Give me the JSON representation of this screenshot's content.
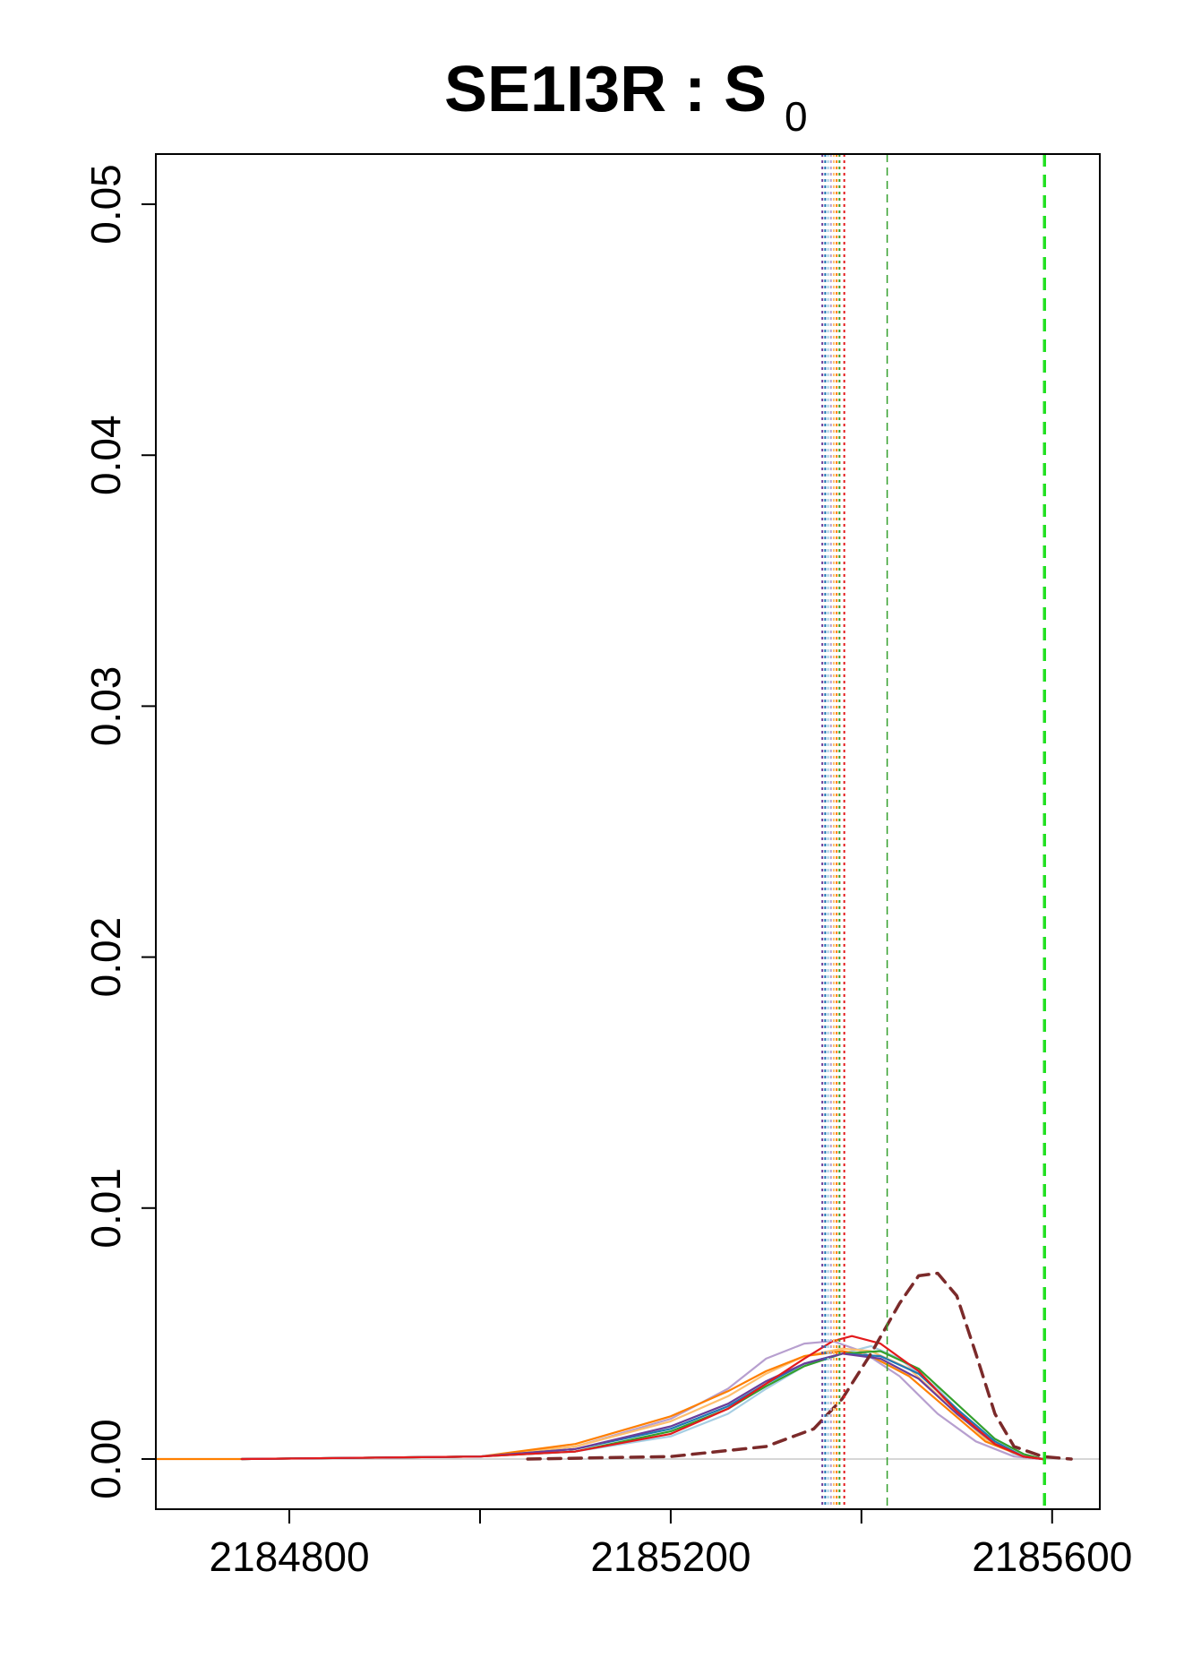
{
  "chart_data": {
    "type": "line",
    "title": {
      "main": "SE1I3R : S",
      "subscript": "0"
    },
    "xlabel": "",
    "ylabel": "",
    "xlim": [
      2184660,
      2185650
    ],
    "ylim": [
      -0.002,
      0.052
    ],
    "x_ticks": [
      2184800,
      2185000,
      2185200,
      2185400,
      2185600
    ],
    "x_tick_labels": [
      "2184800",
      "",
      "2185200",
      "",
      "2185600"
    ],
    "y_ticks": [
      0.0,
      0.01,
      0.02,
      0.03,
      0.04,
      0.05
    ],
    "y_tick_labels": [
      "0.00",
      "0.01",
      "0.02",
      "0.03",
      "0.04",
      "0.05"
    ],
    "grid": false,
    "baseline": {
      "y": 0,
      "color": "#c8c8c8"
    },
    "series": [
      {
        "color": "#b79fcf",
        "style": "solid",
        "x": [
          2184750,
          2185000,
          2185100,
          2185200,
          2185260,
          2185300,
          2185340,
          2185370,
          2185400,
          2185440,
          2185480,
          2185520,
          2185560,
          2185590
        ],
        "y": [
          0,
          0.0001,
          0.0005,
          0.0016,
          0.0028,
          0.004,
          0.0046,
          0.0047,
          0.0043,
          0.0033,
          0.0018,
          0.0007,
          0.0001,
          0
        ]
      },
      {
        "color": "#a6cee3",
        "style": "solid",
        "x": [
          2184750,
          2185000,
          2185100,
          2185200,
          2185260,
          2185300,
          2185340,
          2185380,
          2185410,
          2185440,
          2185480,
          2185520,
          2185560,
          2185590
        ],
        "y": [
          0,
          0.0001,
          0.0003,
          0.0009,
          0.0018,
          0.0028,
          0.0037,
          0.0042,
          0.0045,
          0.004,
          0.0028,
          0.0012,
          0.0002,
          0
        ]
      },
      {
        "color": "#fdbf6f",
        "style": "solid",
        "x": [
          2184750,
          2185000,
          2185100,
          2185200,
          2185260,
          2185300,
          2185340,
          2185380,
          2185410,
          2185450,
          2185490,
          2185530,
          2185570,
          2185590
        ],
        "y": [
          0,
          0.0001,
          0.0005,
          0.0015,
          0.0025,
          0.0034,
          0.0041,
          0.0044,
          0.0043,
          0.0036,
          0.0022,
          0.0008,
          0.0001,
          0
        ]
      },
      {
        "color": "#ff7f00",
        "style": "solid",
        "x": [
          2184660,
          2184750,
          2185000,
          2185100,
          2185200,
          2185260,
          2185300,
          2185340,
          2185380,
          2185410,
          2185450,
          2185490,
          2185530,
          2185570,
          2185590
        ],
        "y": [
          0,
          0,
          0.0001,
          0.0006,
          0.0017,
          0.0027,
          0.0035,
          0.0041,
          0.0043,
          0.0041,
          0.0033,
          0.002,
          0.0007,
          0.0001,
          0
        ]
      },
      {
        "color": "#33a02c",
        "style": "solid",
        "x": [
          2184750,
          2185000,
          2185100,
          2185200,
          2185260,
          2185300,
          2185340,
          2185380,
          2185420,
          2185460,
          2185500,
          2185540,
          2185570,
          2185590
        ],
        "y": [
          0,
          0.0001,
          0.0003,
          0.0011,
          0.002,
          0.0029,
          0.0037,
          0.0042,
          0.0043,
          0.0036,
          0.0022,
          0.0008,
          0.0002,
          0
        ]
      },
      {
        "color": "#1f78b4",
        "style": "solid",
        "x": [
          2184750,
          2185000,
          2185100,
          2185200,
          2185260,
          2185300,
          2185340,
          2185380,
          2185420,
          2185460,
          2185500,
          2185540,
          2185570,
          2185590
        ],
        "y": [
          0,
          0.0001,
          0.0004,
          0.0012,
          0.0021,
          0.003,
          0.0038,
          0.0042,
          0.0041,
          0.0034,
          0.002,
          0.0007,
          0.0001,
          0
        ]
      },
      {
        "color": "#6a3d9a",
        "style": "solid",
        "x": [
          2184750,
          2185000,
          2185100,
          2185200,
          2185260,
          2185300,
          2185340,
          2185380,
          2185420,
          2185460,
          2185500,
          2185540,
          2185570,
          2185590
        ],
        "y": [
          0,
          0.0001,
          0.0004,
          0.0013,
          0.0022,
          0.0031,
          0.0038,
          0.0042,
          0.004,
          0.0032,
          0.0018,
          0.0006,
          0.0001,
          0
        ]
      },
      {
        "color": "#e31a1c",
        "style": "solid",
        "x": [
          2184750,
          2185000,
          2185100,
          2185200,
          2185260,
          2185300,
          2185340,
          2185370,
          2185390,
          2185420,
          2185460,
          2185500,
          2185540,
          2185570,
          2185590
        ],
        "y": [
          0,
          0.0001,
          0.0003,
          0.001,
          0.002,
          0.003,
          0.004,
          0.0047,
          0.0049,
          0.0046,
          0.0035,
          0.0019,
          0.0006,
          0.0001,
          0
        ]
      },
      {
        "color": "#7b2a2a",
        "style": "dashed",
        "width": 3.5,
        "x": [
          2185050,
          2185200,
          2185300,
          2185350,
          2185380,
          2185410,
          2185440,
          2185460,
          2185480,
          2185500,
          2185520,
          2185540,
          2185560,
          2185590,
          2185620
        ],
        "y": [
          0,
          0.0001,
          0.0005,
          0.0012,
          0.0024,
          0.0042,
          0.0062,
          0.0073,
          0.0074,
          0.0065,
          0.0042,
          0.0018,
          0.0005,
          0.0001,
          0
        ]
      }
    ],
    "vertical_lines": [
      {
        "x": 2185359,
        "color": "#6a3d9a",
        "style": "dotted",
        "width": 2
      },
      {
        "x": 2185362,
        "color": "#1f78b4",
        "style": "dotted",
        "width": 2
      },
      {
        "x": 2185365,
        "color": "#a6cee3",
        "style": "dotted",
        "width": 2
      },
      {
        "x": 2185368,
        "color": "#b79fcf",
        "style": "dotted",
        "width": 2
      },
      {
        "x": 2185371,
        "color": "#fdbf6f",
        "style": "dotted",
        "width": 2
      },
      {
        "x": 2185374,
        "color": "#ff7f00",
        "style": "dotted",
        "width": 2
      },
      {
        "x": 2185377,
        "color": "#33a02c",
        "style": "dotted",
        "width": 2
      },
      {
        "x": 2185382,
        "color": "#e31a1c",
        "style": "dotted",
        "width": 2
      },
      {
        "x": 2185427,
        "color": "#33a02c",
        "style": "dashed",
        "width": 1.5
      },
      {
        "x": 2185592,
        "color": "#22e022",
        "style": "dashed",
        "width": 3.5
      }
    ]
  }
}
